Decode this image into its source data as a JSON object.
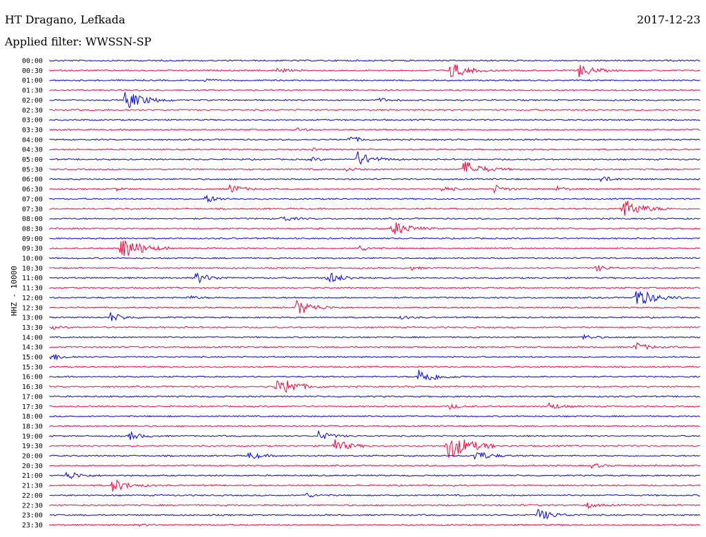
{
  "header": {
    "station": "HT Dragano, Lefkada",
    "date": "2017-12-23",
    "filter": "Applied filter: WWSSN-SP",
    "channel": "HHZ - 10000"
  },
  "colors": {
    "blue": "#0000e0",
    "red": "#ff0038"
  },
  "chart_data": {
    "type": "line",
    "title": "HT Dragano, Lefkada",
    "xlabel": "",
    "ylabel": "HHZ - 10000",
    "row_labels": [
      "00:00",
      "00:30",
      "01:00",
      "01:30",
      "02:00",
      "02:30",
      "03:00",
      "03:30",
      "04:00",
      "04:30",
      "05:00",
      "05:30",
      "06:00",
      "06:30",
      "07:00",
      "07:30",
      "08:00",
      "08:30",
      "09:00",
      "09:30",
      "10:00",
      "10:30",
      "11:00",
      "11:30",
      "12:00",
      "12:30",
      "13:00",
      "13:30",
      "14:00",
      "14:30",
      "15:00",
      "15:30",
      "16:00",
      "16:30",
      "17:00",
      "17:30",
      "18:00",
      "18:30",
      "19:00",
      "19:30",
      "20:00",
      "20:30",
      "21:00",
      "21:30",
      "22:00",
      "22:30",
      "23:00",
      "23:30"
    ],
    "series_colors": [
      "blue",
      "red"
    ],
    "row_duration_minutes": 30,
    "events_minutes": {
      "00:30": [
        [
          18.5,
          2.0
        ],
        [
          24.4,
          1.6
        ],
        [
          10.5,
          0.6
        ]
      ],
      "01:00": [
        [
          7.1,
          0.4
        ]
      ],
      "02:00": [
        [
          3.5,
          2.5
        ],
        [
          15.1,
          0.6
        ]
      ],
      "03:30": [
        [
          11.4,
          0.4
        ]
      ],
      "04:00": [
        [
          13.8,
          0.9
        ]
      ],
      "04:30": [
        [
          12.1,
          0.3
        ]
      ],
      "05:00": [
        [
          14.2,
          1.8
        ],
        [
          12.0,
          0.5
        ]
      ],
      "05:30": [
        [
          19.1,
          2.2
        ],
        [
          13.7,
          0.5
        ]
      ],
      "06:00": [
        [
          25.4,
          0.8
        ]
      ],
      "06:30": [
        [
          8.3,
          1.2
        ],
        [
          20.5,
          1.0
        ],
        [
          18.1,
          0.7
        ],
        [
          3.0,
          0.4
        ],
        [
          23.4,
          0.6
        ]
      ],
      "07:00": [
        [
          7.2,
          1.0
        ]
      ],
      "07:30": [
        [
          26.4,
          2.5
        ]
      ],
      "08:00": [
        [
          10.7,
          0.8
        ]
      ],
      "08:30": [
        [
          15.8,
          2.0
        ]
      ],
      "09:30": [
        [
          3.3,
          3.0
        ],
        [
          14.3,
          0.6
        ]
      ],
      "10:30": [
        [
          25.2,
          0.8
        ],
        [
          16.6,
          0.5
        ]
      ],
      "11:00": [
        [
          6.7,
          1.5
        ],
        [
          12.8,
          1.6
        ]
      ],
      "12:00": [
        [
          27.0,
          2.5
        ],
        [
          6.4,
          0.5
        ]
      ],
      "12:30": [
        [
          11.4,
          2.0
        ]
      ],
      "13:00": [
        [
          2.8,
          1.2
        ],
        [
          16.2,
          0.4
        ]
      ],
      "13:30": [
        [
          0.1,
          0.4
        ]
      ],
      "14:00": [
        [
          24.6,
          0.7
        ]
      ],
      "14:30": [
        [
          27.0,
          1.2
        ]
      ],
      "15:00": [
        [
          0.1,
          0.9
        ]
      ],
      "16:00": [
        [
          17.0,
          2.0
        ]
      ],
      "16:30": [
        [
          10.4,
          1.5
        ],
        [
          10.9,
          1.5
        ]
      ],
      "17:30": [
        [
          18.4,
          0.7
        ],
        [
          23.0,
          0.9
        ]
      ],
      "19:00": [
        [
          3.7,
          1.0
        ],
        [
          12.4,
          1.2
        ]
      ],
      "19:30": [
        [
          13.1,
          1.7
        ],
        [
          18.3,
          3.5
        ]
      ],
      "20:00": [
        [
          9.2,
          1.0
        ],
        [
          19.6,
          1.5
        ]
      ],
      "20:30": [
        [
          25.0,
          0.6
        ]
      ],
      "21:00": [
        [
          0.8,
          1.2
        ]
      ],
      "21:30": [
        [
          2.9,
          1.7
        ]
      ],
      "22:00": [
        [
          11.8,
          0.6
        ]
      ],
      "22:30": [
        [
          24.8,
          0.7
        ]
      ],
      "23:00": [
        [
          22.5,
          1.6
        ]
      ],
      "23:30": [
        [
          4.2,
          0.3
        ]
      ]
    }
  }
}
